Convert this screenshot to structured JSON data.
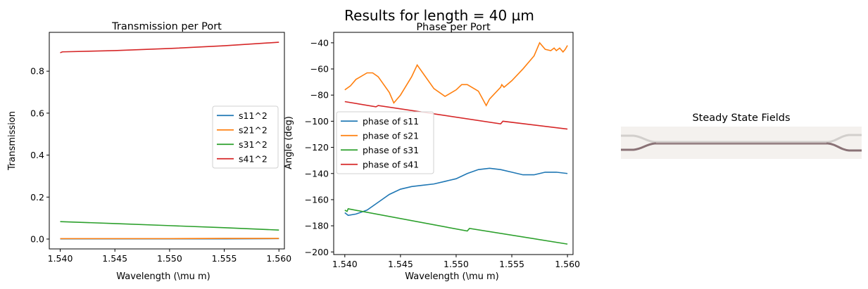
{
  "suptitle": "Results for length = 40 µm",
  "colors": {
    "c0": "#1f77b4",
    "c1": "#ff7f0e",
    "c2": "#2ca02c",
    "c3": "#d62728"
  },
  "chart_data": [
    {
      "type": "line",
      "title": "Transmission per Port",
      "xlabel": "Wavelength (\\mu m)",
      "ylabel": "Transmission",
      "xlim": [
        1.539,
        1.5605
      ],
      "ylim": [
        -0.047,
        0.985
      ],
      "xticks": [
        1.54,
        1.545,
        1.55,
        1.555,
        1.56
      ],
      "xtick_labels": [
        "1.540",
        "1.545",
        "1.550",
        "1.555",
        "1.560"
      ],
      "yticks": [
        0.0,
        0.2,
        0.4,
        0.6,
        0.8
      ],
      "ytick_labels": [
        "0.0",
        "0.2",
        "0.4",
        "0.6",
        "0.8"
      ],
      "legend": "center-right",
      "series": [
        {
          "name": "s11^2",
          "color": "#1f77b4",
          "x": [
            1.54,
            1.545,
            1.55,
            1.555,
            1.56
          ],
          "y": [
            0.001,
            0.001,
            0.001,
            0.001,
            0.002
          ]
        },
        {
          "name": "s21^2",
          "color": "#ff7f0e",
          "x": [
            1.54,
            1.545,
            1.55,
            1.555,
            1.56
          ],
          "y": [
            0.002,
            0.002,
            0.002,
            0.003,
            0.003
          ]
        },
        {
          "name": "s31^2",
          "color": "#2ca02c",
          "x": [
            1.54,
            1.545,
            1.55,
            1.555,
            1.56
          ],
          "y": [
            0.083,
            0.074,
            0.064,
            0.054,
            0.043
          ]
        },
        {
          "name": "s41^2",
          "color": "#d62728",
          "x": [
            1.54,
            1.5402,
            1.545,
            1.55,
            1.555,
            1.56
          ],
          "y": [
            0.888,
            0.892,
            0.898,
            0.908,
            0.921,
            0.938
          ]
        }
      ]
    },
    {
      "type": "line",
      "title": "Phase per Port",
      "xlabel": "Wavelength (\\mu m)",
      "ylabel": "Angle (deg)",
      "xlim": [
        1.539,
        1.5605
      ],
      "ylim": [
        -202,
        -32
      ],
      "xticks": [
        1.54,
        1.545,
        1.55,
        1.555,
        1.56
      ],
      "xtick_labels": [
        "1.540",
        "1.545",
        "1.550",
        "1.555",
        "1.560"
      ],
      "yticks": [
        -200,
        -180,
        -160,
        -140,
        -120,
        -100,
        -80,
        -60,
        -40
      ],
      "ytick_labels": [
        "−200",
        "−180",
        "−160",
        "−140",
        "−120",
        "−100",
        "−80",
        "−60",
        "−40"
      ],
      "legend": "center-left",
      "series": [
        {
          "name": "phase of s11",
          "color": "#1f77b4",
          "x": [
            1.54,
            1.5403,
            1.541,
            1.542,
            1.543,
            1.544,
            1.545,
            1.546,
            1.547,
            1.548,
            1.549,
            1.55,
            1.551,
            1.552,
            1.553,
            1.554,
            1.555,
            1.556,
            1.557,
            1.558,
            1.559,
            1.56
          ],
          "y": [
            -170,
            -172,
            -171,
            -168,
            -162,
            -156,
            -152,
            -150,
            -149,
            -148,
            -146,
            -144,
            -140,
            -137,
            -136,
            -137,
            -139,
            -141,
            -141,
            -139,
            -139,
            -140
          ]
        },
        {
          "name": "phase of s21",
          "color": "#ff7f0e",
          "x": [
            1.54,
            1.5405,
            1.541,
            1.542,
            1.5425,
            1.543,
            1.544,
            1.5444,
            1.545,
            1.546,
            1.5465,
            1.547,
            1.548,
            1.549,
            1.55,
            1.5505,
            1.551,
            1.552,
            1.5527,
            1.553,
            1.554,
            1.5541,
            1.5543,
            1.555,
            1.556,
            1.557,
            1.5575,
            1.558,
            1.5585,
            1.5588,
            1.559,
            1.5593,
            1.5596,
            1.5598,
            1.56
          ],
          "y": [
            -76,
            -73,
            -68,
            -63,
            -63,
            -66,
            -78,
            -86,
            -80,
            -66,
            -57,
            -63,
            -75,
            -81,
            -76,
            -72,
            -72,
            -77,
            -88,
            -83,
            -74,
            -72,
            -74,
            -69,
            -60,
            -50,
            -40,
            -45,
            -46,
            -44,
            -46,
            -44,
            -47,
            -45,
            -42
          ]
        },
        {
          "name": "phase of s31",
          "color": "#2ca02c",
          "x": [
            1.54,
            1.5402,
            1.5403,
            1.551,
            1.5512,
            1.56
          ],
          "y": [
            -168,
            -169,
            -167,
            -184,
            -182,
            -194
          ]
        },
        {
          "name": "phase of s41",
          "color": "#d62728",
          "x": [
            1.54,
            1.5428,
            1.543,
            1.554,
            1.5542,
            1.56
          ],
          "y": [
            -85,
            -89,
            -88,
            -102,
            -100,
            -106
          ]
        }
      ]
    }
  ],
  "field_panel": {
    "title": "Steady State Fields"
  }
}
